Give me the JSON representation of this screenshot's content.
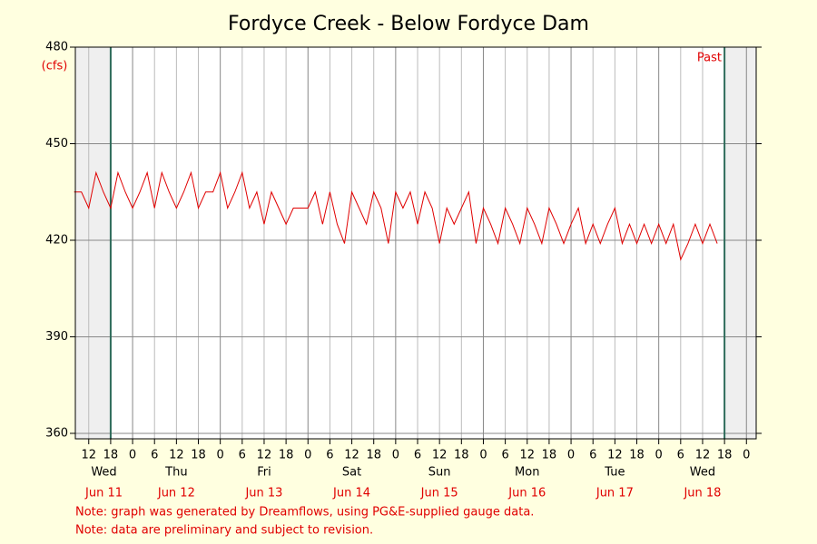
{
  "chart_data": {
    "type": "line",
    "title": "Fordyce Creek - Below Fordyce Dam",
    "y_label": "(cfs)",
    "annotation": "Past",
    "notes": [
      "Note: graph was generated by Dreamflows, using PG&E-supplied gauge data.",
      "Note: data are preliminary and subject to revision."
    ],
    "color": "#e00000",
    "grid": true,
    "window": [
      "Jun 11 18:00",
      "Jun 18 18:00"
    ],
    "xlim": [
      "Jun 11 08:20",
      "Jun 19 02:40"
    ],
    "ylim": [
      358.3,
      480
    ],
    "yticks": [
      360,
      390,
      420,
      450,
      480
    ],
    "xticks": [
      {
        "value": "Jun 11 12:00",
        "label": "12"
      },
      {
        "value": "Jun 11 18:00",
        "label": "18"
      },
      {
        "value": "Jun 12 00:00",
        "label": "0"
      },
      {
        "value": "Jun 12 06:00",
        "label": "6"
      },
      {
        "value": "Jun 12 12:00",
        "label": "12"
      },
      {
        "value": "Jun 12 18:00",
        "label": "18"
      },
      {
        "value": "Jun 13 00:00",
        "label": "0"
      },
      {
        "value": "Jun 13 06:00",
        "label": "6"
      },
      {
        "value": "Jun 13 12:00",
        "label": "12"
      },
      {
        "value": "Jun 13 18:00",
        "label": "18"
      },
      {
        "value": "Jun 14 00:00",
        "label": "0"
      },
      {
        "value": "Jun 14 06:00",
        "label": "6"
      },
      {
        "value": "Jun 14 12:00",
        "label": "12"
      },
      {
        "value": "Jun 14 18:00",
        "label": "18"
      },
      {
        "value": "Jun 15 00:00",
        "label": "0"
      },
      {
        "value": "Jun 15 06:00",
        "label": "6"
      },
      {
        "value": "Jun 15 12:00",
        "label": "12"
      },
      {
        "value": "Jun 15 18:00",
        "label": "18"
      },
      {
        "value": "Jun 16 00:00",
        "label": "0"
      },
      {
        "value": "Jun 16 06:00",
        "label": "6"
      },
      {
        "value": "Jun 16 12:00",
        "label": "12"
      },
      {
        "value": "Jun 16 18:00",
        "label": "18"
      },
      {
        "value": "Jun 17 00:00",
        "label": "0"
      },
      {
        "value": "Jun 17 06:00",
        "label": "6"
      },
      {
        "value": "Jun 17 12:00",
        "label": "12"
      },
      {
        "value": "Jun 17 18:00",
        "label": "18"
      },
      {
        "value": "Jun 18 00:00",
        "label": "0"
      },
      {
        "value": "Jun 18 06:00",
        "label": "6"
      },
      {
        "value": "Jun 18 12:00",
        "label": "12"
      },
      {
        "value": "Jun 18 18:00",
        "label": "18"
      },
      {
        "value": "Jun 19 00:00",
        "label": "0"
      }
    ],
    "day_labels": [
      {
        "weekday": "Wed",
        "date": "Jun 11"
      },
      {
        "weekday": "Thu",
        "date": "Jun 12"
      },
      {
        "weekday": "Fri",
        "date": "Jun 13"
      },
      {
        "weekday": "Sat",
        "date": "Jun 14"
      },
      {
        "weekday": "Sun",
        "date": "Jun 15"
      },
      {
        "weekday": "Mon",
        "date": "Jun 16"
      },
      {
        "weekday": "Tue",
        "date": "Jun 17"
      },
      {
        "weekday": "Wed",
        "date": "Jun 18"
      }
    ],
    "x": [
      "Jun 11 08:00",
      "Jun 11 10:00",
      "Jun 11 12:00",
      "Jun 11 14:00",
      "Jun 11 16:00",
      "Jun 11 18:00",
      "Jun 11 20:00",
      "Jun 11 22:00",
      "Jun 12 00:00",
      "Jun 12 02:00",
      "Jun 12 04:00",
      "Jun 12 06:00",
      "Jun 12 08:00",
      "Jun 12 10:00",
      "Jun 12 12:00",
      "Jun 12 14:00",
      "Jun 12 16:00",
      "Jun 12 18:00",
      "Jun 12 20:00",
      "Jun 12 22:00",
      "Jun 13 00:00",
      "Jun 13 02:00",
      "Jun 13 04:00",
      "Jun 13 06:00",
      "Jun 13 08:00",
      "Jun 13 10:00",
      "Jun 13 12:00",
      "Jun 13 14:00",
      "Jun 13 16:00",
      "Jun 13 18:00",
      "Jun 13 20:00",
      "Jun 13 22:00",
      "Jun 14 00:00",
      "Jun 14 02:00",
      "Jun 14 04:00",
      "Jun 14 06:00",
      "Jun 14 08:00",
      "Jun 14 10:00",
      "Jun 14 12:00",
      "Jun 14 14:00",
      "Jun 14 16:00",
      "Jun 14 18:00",
      "Jun 14 20:00",
      "Jun 14 22:00",
      "Jun 15 00:00",
      "Jun 15 02:00",
      "Jun 15 04:00",
      "Jun 15 06:00",
      "Jun 15 08:00",
      "Jun 15 10:00",
      "Jun 15 12:00",
      "Jun 15 14:00",
      "Jun 15 16:00",
      "Jun 15 18:00",
      "Jun 15 20:00",
      "Jun 15 22:00",
      "Jun 16 00:00",
      "Jun 16 02:00",
      "Jun 16 04:00",
      "Jun 16 06:00",
      "Jun 16 08:00",
      "Jun 16 10:00",
      "Jun 16 12:00",
      "Jun 16 14:00",
      "Jun 16 16:00",
      "Jun 16 18:00",
      "Jun 16 20:00",
      "Jun 16 22:00",
      "Jun 17 00:00",
      "Jun 17 02:00",
      "Jun 17 04:00",
      "Jun 17 06:00",
      "Jun 17 08:00",
      "Jun 17 10:00",
      "Jun 17 12:00",
      "Jun 17 14:00",
      "Jun 17 16:00",
      "Jun 17 18:00",
      "Jun 17 20:00",
      "Jun 17 22:00",
      "Jun 18 00:00",
      "Jun 18 02:00",
      "Jun 18 04:00",
      "Jun 18 06:00",
      "Jun 18 08:00",
      "Jun 18 10:00",
      "Jun 18 12:00",
      "Jun 18 14:00",
      "Jun 18 16:00"
    ],
    "values": [
      435,
      435,
      430,
      441,
      435,
      430,
      441,
      435,
      430,
      435,
      441,
      430,
      441,
      435,
      430,
      435,
      441,
      430,
      435,
      435,
      441,
      430,
      435,
      441,
      430,
      435,
      425,
      435,
      430,
      425,
      430,
      430,
      430,
      435,
      425,
      435,
      425,
      419,
      435,
      430,
      425,
      435,
      430,
      419,
      435,
      430,
      435,
      425,
      435,
      430,
      419,
      430,
      425,
      430,
      435,
      419,
      430,
      425,
      419,
      430,
      425,
      419,
      430,
      425,
      419,
      430,
      425,
      419,
      425,
      430,
      419,
      425,
      419,
      425,
      430,
      419,
      425,
      419,
      425,
      419,
      425,
      419,
      425,
      414,
      419,
      425,
      419,
      425,
      419
    ]
  }
}
